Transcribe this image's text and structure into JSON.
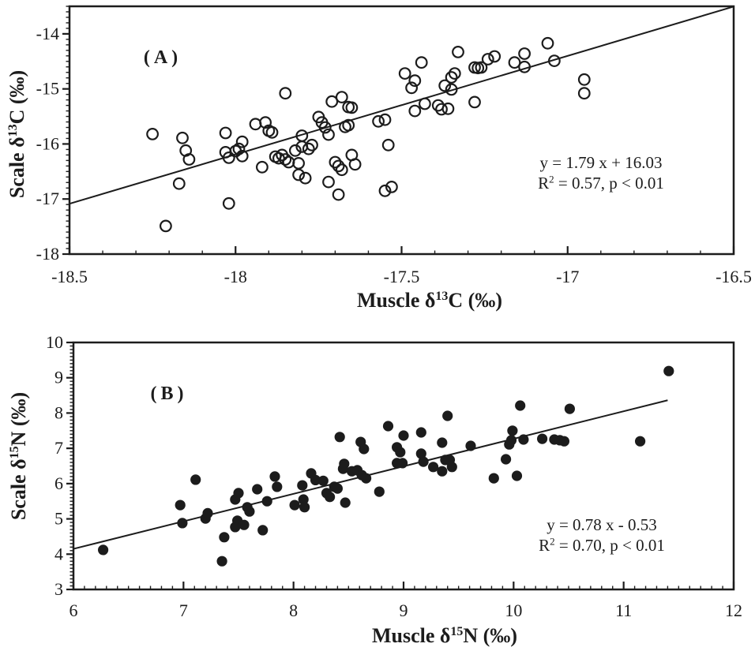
{
  "figure": {
    "background": "#ffffff",
    "ink": "#1c1c1c",
    "description": "Two-panel scatter figure comparing scale vs muscle stable isotope values"
  },
  "chart_data": [
    {
      "panel_id": "A",
      "type": "scatter",
      "panel_label": "(A)",
      "marker": "open-circle",
      "xlabel": "Muscle δ13C (‰)",
      "ylabel": "Scale δ13C (‰)",
      "xlabel_parts": [
        {
          "t": "Muscle δ"
        },
        {
          "t": "13",
          "sup": true
        },
        {
          "t": "C (‰)"
        }
      ],
      "ylabel_parts": [
        {
          "t": "Scale δ"
        },
        {
          "t": "13",
          "sup": true
        },
        {
          "t": "C (‰)"
        }
      ],
      "xlim": [
        -18.5,
        -16.5
      ],
      "ylim": [
        -18,
        -13.5
      ],
      "x_major_ticks": [
        -18.5,
        -18,
        -17.5,
        -17,
        -16.5
      ],
      "x_tick_labels": [
        "-18.5",
        "-18",
        "-17.5",
        "-17",
        "-16.5"
      ],
      "y_major_ticks": [
        -18,
        -17,
        -16,
        -15,
        -14
      ],
      "y_tick_labels": [
        "-18",
        "-17",
        "-16",
        "-15",
        "-14"
      ],
      "x_minor_step": 0.1,
      "y_minor_step": 0.1,
      "grid": false,
      "legend": "none",
      "regression": {
        "slope": 1.79,
        "intercept": 16.03,
        "x_start": -18.5,
        "x_end": -16.5
      },
      "annotation_text": [
        "y = 1.79 x + 16.03",
        "R² = 0.57, p < 0.01"
      ],
      "annotation_lines": [
        [
          {
            "t": "y = 1.79 x + 16.03"
          }
        ],
        [
          {
            "t": "R"
          },
          {
            "t": "2",
            "sup": true
          },
          {
            "t": " = 0.57, p < 0.01"
          }
        ]
      ],
      "points": [
        [
          -18.25,
          -15.82
        ],
        [
          -18.16,
          -15.89
        ],
        [
          -18.15,
          -16.12
        ],
        [
          -18.14,
          -16.28
        ],
        [
          -18.17,
          -16.72
        ],
        [
          -18.21,
          -17.49
        ],
        [
          -18.03,
          -15.8
        ],
        [
          -18.03,
          -16.15
        ],
        [
          -18.02,
          -16.25
        ],
        [
          -18.0,
          -16.13
        ],
        [
          -17.99,
          -16.09
        ],
        [
          -17.98,
          -15.96
        ],
        [
          -17.98,
          -16.22
        ],
        [
          -18.02,
          -17.08
        ],
        [
          -17.94,
          -15.64
        ],
        [
          -17.91,
          -15.61
        ],
        [
          -17.9,
          -15.76
        ],
        [
          -17.89,
          -15.79
        ],
        [
          -17.92,
          -16.42
        ],
        [
          -17.88,
          -16.23
        ],
        [
          -17.87,
          -16.26
        ],
        [
          -17.86,
          -16.2
        ],
        [
          -17.85,
          -15.08
        ],
        [
          -17.85,
          -16.28
        ],
        [
          -17.84,
          -16.33
        ],
        [
          -17.82,
          -16.12
        ],
        [
          -17.81,
          -16.35
        ],
        [
          -17.81,
          -16.56
        ],
        [
          -17.79,
          -16.62
        ],
        [
          -17.8,
          -15.85
        ],
        [
          -17.8,
          -16.05
        ],
        [
          -17.78,
          -16.09
        ],
        [
          -17.77,
          -16.02
        ],
        [
          -17.75,
          -15.51
        ],
        [
          -17.74,
          -15.61
        ],
        [
          -17.73,
          -15.7
        ],
        [
          -17.72,
          -15.83
        ],
        [
          -17.71,
          -15.23
        ],
        [
          -17.68,
          -15.15
        ],
        [
          -17.67,
          -15.69
        ],
        [
          -17.66,
          -15.66
        ],
        [
          -17.7,
          -16.33
        ],
        [
          -17.69,
          -16.4
        ],
        [
          -17.68,
          -16.47
        ],
        [
          -17.72,
          -16.69
        ],
        [
          -17.69,
          -16.92
        ],
        [
          -17.66,
          -15.33
        ],
        [
          -17.65,
          -15.34
        ],
        [
          -17.65,
          -16.2
        ],
        [
          -17.64,
          -16.37
        ],
        [
          -17.57,
          -15.59
        ],
        [
          -17.55,
          -15.56
        ],
        [
          -17.54,
          -16.02
        ],
        [
          -17.55,
          -16.85
        ],
        [
          -17.53,
          -16.78
        ],
        [
          -17.49,
          -14.72
        ],
        [
          -17.44,
          -14.52
        ],
        [
          -17.46,
          -14.85
        ],
        [
          -17.47,
          -14.98
        ],
        [
          -17.46,
          -15.4
        ],
        [
          -17.43,
          -15.27
        ],
        [
          -17.39,
          -15.3
        ],
        [
          -17.38,
          -15.37
        ],
        [
          -17.36,
          -15.36
        ],
        [
          -17.33,
          -14.33
        ],
        [
          -17.37,
          -14.94
        ],
        [
          -17.35,
          -14.79
        ],
        [
          -17.34,
          -14.72
        ],
        [
          -17.35,
          -15.01
        ],
        [
          -17.28,
          -14.61
        ],
        [
          -17.27,
          -14.62
        ],
        [
          -17.26,
          -14.61
        ],
        [
          -17.24,
          -14.46
        ],
        [
          -17.22,
          -14.41
        ],
        [
          -17.28,
          -15.24
        ],
        [
          -17.16,
          -14.52
        ],
        [
          -17.13,
          -14.36
        ],
        [
          -17.13,
          -14.6
        ],
        [
          -17.06,
          -14.17
        ],
        [
          -17.04,
          -14.49
        ],
        [
          -16.95,
          -14.83
        ],
        [
          -16.95,
          -15.08
        ]
      ]
    },
    {
      "panel_id": "B",
      "type": "scatter",
      "panel_label": "(B)",
      "marker": "filled-circle",
      "xlabel": "Muscle δ15N (‰)",
      "ylabel": "Scale δ15N (‰)",
      "xlabel_parts": [
        {
          "t": "Muscle δ"
        },
        {
          "t": "15",
          "sup": true
        },
        {
          "t": "N (‰)"
        }
      ],
      "ylabel_parts": [
        {
          "t": "Scale δ"
        },
        {
          "t": "15",
          "sup": true
        },
        {
          "t": "N (‰)"
        }
      ],
      "xlim": [
        6,
        12
      ],
      "ylim": [
        3,
        10
      ],
      "x_major_ticks": [
        6,
        7,
        8,
        9,
        10,
        11,
        12
      ],
      "x_tick_labels": [
        "6",
        "7",
        "8",
        "9",
        "10",
        "11",
        "12"
      ],
      "y_major_ticks": [
        3,
        4,
        5,
        6,
        7,
        8,
        9,
        10
      ],
      "y_tick_labels": [
        "3",
        "4",
        "5",
        "6",
        "7",
        "8",
        "9",
        "10"
      ],
      "x_minor_step": 0.1,
      "y_minor_step": 0.1,
      "grid": false,
      "legend": "none",
      "regression": {
        "slope": 0.78,
        "intercept": -0.53,
        "x_start": 6.0,
        "x_end": 11.4
      },
      "annotation_text": [
        "y = 0.78 x - 0.53",
        "R² = 0.70, p < 0.01"
      ],
      "annotation_lines": [
        [
          {
            "t": "y = 0.78 x - 0.53"
          }
        ],
        [
          {
            "t": "R"
          },
          {
            "t": "2",
            "sup": true
          },
          {
            "t": " = 0.70, p < 0.01"
          }
        ]
      ],
      "points": [
        [
          6.27,
          4.12
        ],
        [
          6.97,
          5.39
        ],
        [
          6.99,
          4.88
        ],
        [
          7.11,
          6.11
        ],
        [
          7.2,
          5.01
        ],
        [
          7.22,
          5.16
        ],
        [
          7.37,
          4.48
        ],
        [
          7.35,
          3.8
        ],
        [
          7.47,
          5.55
        ],
        [
          7.5,
          5.73
        ],
        [
          7.49,
          4.95
        ],
        [
          7.55,
          4.83
        ],
        [
          7.47,
          4.77
        ],
        [
          7.58,
          5.33
        ],
        [
          7.6,
          5.21
        ],
        [
          7.67,
          5.84
        ],
        [
          7.72,
          4.68
        ],
        [
          7.76,
          5.5
        ],
        [
          7.83,
          6.2
        ],
        [
          7.85,
          5.91
        ],
        [
          8.01,
          5.39
        ],
        [
          8.09,
          5.55
        ],
        [
          8.1,
          5.33
        ],
        [
          8.08,
          5.95
        ],
        [
          8.16,
          6.29
        ],
        [
          8.2,
          6.1
        ],
        [
          8.27,
          6.08
        ],
        [
          8.3,
          5.73
        ],
        [
          8.33,
          5.62
        ],
        [
          8.37,
          5.91
        ],
        [
          8.4,
          5.86
        ],
        [
          8.47,
          5.46
        ],
        [
          8.45,
          6.42
        ],
        [
          8.46,
          6.56
        ],
        [
          8.53,
          6.35
        ],
        [
          8.58,
          6.38
        ],
        [
          8.62,
          6.24
        ],
        [
          8.66,
          6.15
        ],
        [
          8.78,
          5.77
        ],
        [
          8.42,
          7.32
        ],
        [
          8.61,
          7.18
        ],
        [
          8.64,
          6.98
        ],
        [
          8.86,
          7.63
        ],
        [
          8.94,
          7.03
        ],
        [
          8.97,
          6.89
        ],
        [
          8.94,
          6.58
        ],
        [
          8.99,
          6.58
        ],
        [
          9.0,
          7.36
        ],
        [
          9.16,
          7.45
        ],
        [
          9.16,
          6.85
        ],
        [
          9.18,
          6.62
        ],
        [
          9.27,
          6.47
        ],
        [
          9.35,
          7.16
        ],
        [
          9.35,
          6.35
        ],
        [
          9.38,
          6.67
        ],
        [
          9.42,
          6.67
        ],
        [
          9.44,
          6.47
        ],
        [
          9.4,
          7.92
        ],
        [
          9.61,
          7.07
        ],
        [
          9.82,
          6.15
        ],
        [
          9.93,
          6.69
        ],
        [
          10.03,
          6.22
        ],
        [
          9.96,
          7.11
        ],
        [
          9.98,
          7.23
        ],
        [
          9.99,
          7.5
        ],
        [
          10.06,
          8.21
        ],
        [
          10.09,
          7.25
        ],
        [
          10.26,
          7.27
        ],
        [
          10.37,
          7.25
        ],
        [
          10.42,
          7.23
        ],
        [
          10.46,
          7.2
        ],
        [
          10.51,
          8.12
        ],
        [
          11.15,
          7.2
        ],
        [
          11.41,
          9.19
        ]
      ]
    }
  ]
}
